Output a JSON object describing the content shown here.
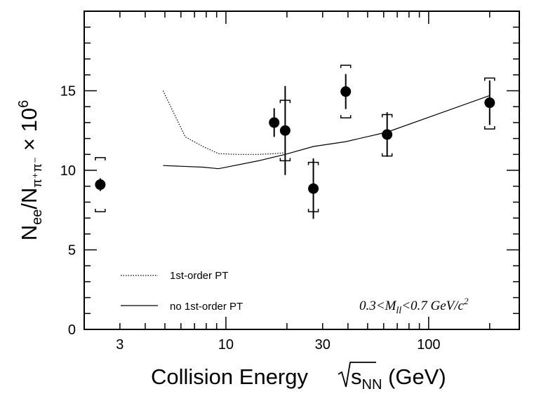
{
  "chart_data": {
    "type": "scatter",
    "title": "",
    "xlabel": {
      "main": "Collision Energy ",
      "sub": "NN",
      "var": "s",
      "unit": " (GeV)"
    },
    "ylabel": {
      "base": "N",
      "sub1": "ee",
      "slash": "/N",
      "sub2": "π⁺π⁻",
      "suffix": " × 10",
      "exp": "6"
    },
    "xscale": "log",
    "xlim": [
      2,
      280
    ],
    "ylim": [
      0,
      20
    ],
    "x_ticks": [
      3,
      10,
      30,
      100
    ],
    "x_tick_labels": [
      "3",
      "10",
      "30",
      "100"
    ],
    "y_ticks": [
      0,
      5,
      10,
      15
    ],
    "y_tick_labels": [
      "0",
      "5",
      "10",
      "15"
    ],
    "grid": false,
    "legend_position": "bottom-left",
    "series": [
      {
        "type": "errorbar",
        "color": "#000000",
        "points": [
          {
            "x": 2.4,
            "y": 9.1,
            "stat": 0.4,
            "sys_lo": 7.4,
            "sys_hi": 10.8
          },
          {
            "x": 17.3,
            "y": 13.0,
            "stat": 0.9
          },
          {
            "x": 19.6,
            "y": 12.5,
            "stat": 2.8,
            "sys_lo": 10.6,
            "sys_hi": 14.4
          },
          {
            "x": 27,
            "y": 8.85,
            "stat": 1.9,
            "sys_lo": 7.4,
            "sys_hi": 10.5
          },
          {
            "x": 39,
            "y": 14.95,
            "stat": 1.1,
            "sys_lo": 13.3,
            "sys_hi": 16.6
          },
          {
            "x": 62.4,
            "y": 12.25,
            "stat": 1.4,
            "sys_lo": 10.9,
            "sys_hi": 13.5
          },
          {
            "x": 200,
            "y": 14.25,
            "stat": 1.4,
            "sys_lo": 12.6,
            "sys_hi": 15.8
          }
        ]
      },
      {
        "name": "1st-order PT",
        "type": "line",
        "style": "dotted",
        "x": [
          4.9,
          6.3,
          7.7,
          9.2,
          11.5,
          14.5,
          17.3,
          19.6
        ],
        "y": [
          15.0,
          12.1,
          11.5,
          11.05,
          11.0,
          11.0,
          11.05,
          11.1
        ]
      },
      {
        "name": "no 1st-order PT",
        "type": "line",
        "style": "solid",
        "x": [
          4.9,
          7.7,
          9.2,
          14.5,
          19.6,
          27,
          39,
          62.4,
          200
        ],
        "y": [
          10.3,
          10.2,
          10.1,
          10.6,
          11.0,
          11.5,
          11.8,
          12.4,
          14.7
        ]
      }
    ],
    "annotation": {
      "text": "0.3<M",
      "sub": "ll",
      "mid": "<0.7 GeV/c",
      "sup": "2"
    }
  }
}
